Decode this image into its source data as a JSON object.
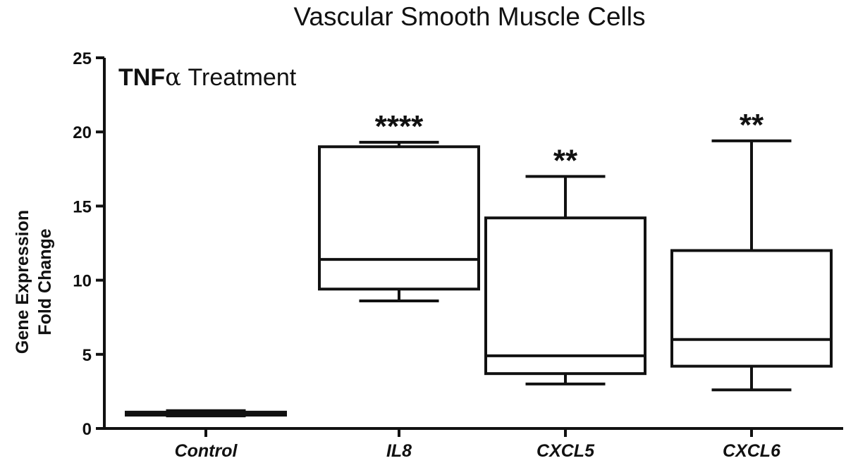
{
  "chart_data": {
    "type": "box",
    "title": "Vascular Smooth Muscle Cells",
    "ylabel": [
      "Gene Expression",
      "Fold Change"
    ],
    "xlabel": "",
    "ylim": [
      0,
      25
    ],
    "yticks": [
      0,
      5,
      10,
      15,
      20,
      25
    ],
    "annotation": {
      "bold": "TNF",
      "greek": "α",
      "rest": " Treatment"
    },
    "categories": [
      "Control",
      "IL8",
      "CXCL5",
      "CXCL6"
    ],
    "boxes": [
      {
        "category": "Control",
        "min": 0.85,
        "q1": 0.9,
        "median": 1.0,
        "q3": 1.1,
        "max": 1.2,
        "significance": ""
      },
      {
        "category": "IL8",
        "min": 8.6,
        "q1": 9.4,
        "median": 11.4,
        "q3": 19.0,
        "max": 19.3,
        "significance": "****"
      },
      {
        "category": "CXCL5",
        "min": 3.0,
        "q1": 3.7,
        "median": 4.9,
        "q3": 14.2,
        "max": 17.0,
        "significance": "**"
      },
      {
        "category": "CXCL6",
        "min": 2.6,
        "q1": 4.2,
        "median": 6.0,
        "q3": 12.0,
        "max": 19.4,
        "significance": "**"
      }
    ],
    "grid": false,
    "legend": "none"
  }
}
